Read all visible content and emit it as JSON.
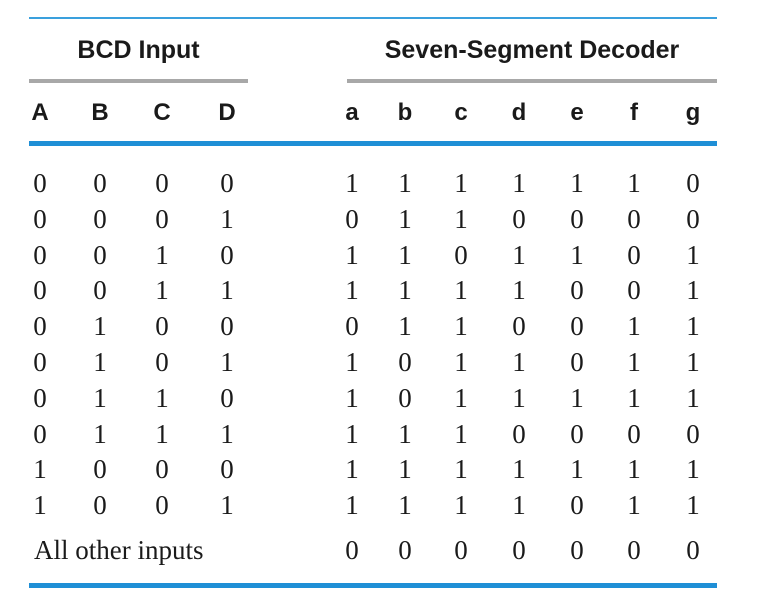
{
  "table": {
    "group_headers": {
      "input": "BCD Input",
      "output": "Seven-Segment Decoder"
    },
    "input_columns": [
      "A",
      "B",
      "C",
      "D"
    ],
    "output_columns": [
      "a",
      "b",
      "c",
      "d",
      "e",
      "f",
      "g"
    ],
    "rows": [
      {
        "inputs": [
          "0",
          "0",
          "0",
          "0"
        ],
        "outputs": [
          "1",
          "1",
          "1",
          "1",
          "1",
          "1",
          "0"
        ]
      },
      {
        "inputs": [
          "0",
          "0",
          "0",
          "1"
        ],
        "outputs": [
          "0",
          "1",
          "1",
          "0",
          "0",
          "0",
          "0"
        ]
      },
      {
        "inputs": [
          "0",
          "0",
          "1",
          "0"
        ],
        "outputs": [
          "1",
          "1",
          "0",
          "1",
          "1",
          "0",
          "1"
        ]
      },
      {
        "inputs": [
          "0",
          "0",
          "1",
          "1"
        ],
        "outputs": [
          "1",
          "1",
          "1",
          "1",
          "0",
          "0",
          "1"
        ]
      },
      {
        "inputs": [
          "0",
          "1",
          "0",
          "0"
        ],
        "outputs": [
          "0",
          "1",
          "1",
          "0",
          "0",
          "1",
          "1"
        ]
      },
      {
        "inputs": [
          "0",
          "1",
          "0",
          "1"
        ],
        "outputs": [
          "1",
          "0",
          "1",
          "1",
          "0",
          "1",
          "1"
        ]
      },
      {
        "inputs": [
          "0",
          "1",
          "1",
          "0"
        ],
        "outputs": [
          "1",
          "0",
          "1",
          "1",
          "1",
          "1",
          "1"
        ]
      },
      {
        "inputs": [
          "0",
          "1",
          "1",
          "1"
        ],
        "outputs": [
          "1",
          "1",
          "1",
          "0",
          "0",
          "0",
          "0"
        ]
      },
      {
        "inputs": [
          "1",
          "0",
          "0",
          "0"
        ],
        "outputs": [
          "1",
          "1",
          "1",
          "1",
          "1",
          "1",
          "1"
        ]
      },
      {
        "inputs": [
          "1",
          "0",
          "0",
          "1"
        ],
        "outputs": [
          "1",
          "1",
          "1",
          "1",
          "0",
          "1",
          "1"
        ]
      }
    ],
    "other_inputs": {
      "label": "All other inputs",
      "outputs": [
        "0",
        "0",
        "0",
        "0",
        "0",
        "0",
        "0"
      ]
    }
  }
}
